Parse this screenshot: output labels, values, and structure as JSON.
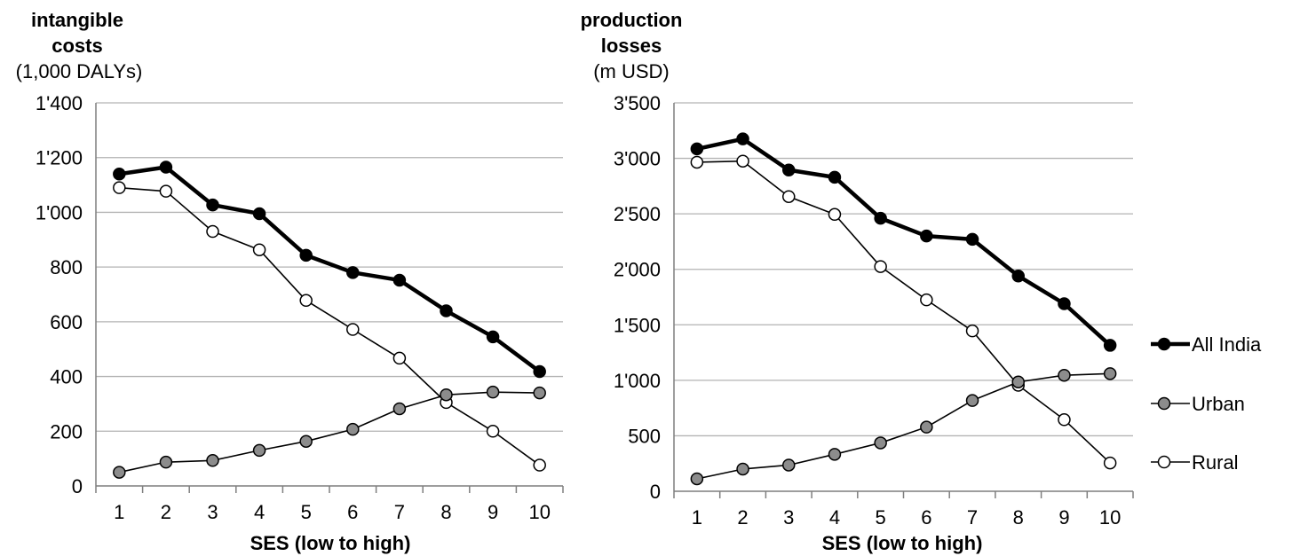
{
  "chart_data": [
    {
      "type": "line",
      "title_line1": "intangible",
      "title_line2": "costs",
      "unit": "(1,000 DALYs)",
      "xlabel": "SES (low to high)",
      "x": [
        1,
        2,
        3,
        4,
        5,
        6,
        7,
        8,
        9,
        10
      ],
      "ylim": [
        0,
        1400
      ],
      "yticks": [
        0,
        200,
        400,
        600,
        800,
        1000,
        1200,
        1400
      ],
      "ytick_labels": [
        "0",
        "200",
        "400",
        "600",
        "800",
        "1'000",
        "1'200",
        "1'400"
      ],
      "grid": true,
      "series": [
        {
          "name": "All India",
          "values": [
            1140,
            1165,
            1027,
            995,
            843,
            780,
            752,
            640,
            545,
            418
          ]
        },
        {
          "name": "Urban",
          "values": [
            50,
            87,
            93,
            130,
            163,
            207,
            282,
            333,
            343,
            340
          ]
        },
        {
          "name": "Rural",
          "values": [
            1090,
            1077,
            930,
            863,
            678,
            572,
            467,
            305,
            200,
            76
          ]
        }
      ]
    },
    {
      "type": "line",
      "title_line1": "production",
      "title_line2": "losses",
      "unit": "(m USD)",
      "xlabel": "SES (low to high)",
      "x": [
        1,
        2,
        3,
        4,
        5,
        6,
        7,
        8,
        9,
        10
      ],
      "ylim": [
        0,
        3500
      ],
      "yticks": [
        0,
        500,
        1000,
        1500,
        2000,
        2500,
        3000,
        3500
      ],
      "ytick_labels": [
        "0",
        "500",
        "1'000",
        "1'500",
        "2'000",
        "2'500",
        "3'000",
        "3'500"
      ],
      "grid": true,
      "series": [
        {
          "name": "All India",
          "values": [
            3085,
            3175,
            2895,
            2830,
            2460,
            2300,
            2270,
            1940,
            1690,
            1315
          ]
        },
        {
          "name": "Urban",
          "values": [
            112,
            200,
            236,
            333,
            436,
            578,
            818,
            985,
            1045,
            1060
          ]
        },
        {
          "name": "Rural",
          "values": [
            2965,
            2975,
            2655,
            2495,
            2025,
            1725,
            1445,
            955,
            645,
            255
          ]
        }
      ]
    }
  ],
  "legend": {
    "placement": "right",
    "items": [
      {
        "label": "All India",
        "style": "all-india"
      },
      {
        "label": "Urban",
        "style": "urban"
      },
      {
        "label": "Rural",
        "style": "rural"
      }
    ]
  },
  "styles": {
    "all-india": {
      "stroke": "#000000",
      "strokeWidth": 4.5,
      "fill": "#000000"
    },
    "urban": {
      "stroke": "#000000",
      "strokeWidth": 1.6,
      "fill": "#8c8c8c"
    },
    "rural": {
      "stroke": "#000000",
      "strokeWidth": 1.6,
      "fill": "#ffffff"
    },
    "grid_color": "#b3b3b3",
    "axis_color": "#7f7f7f"
  }
}
